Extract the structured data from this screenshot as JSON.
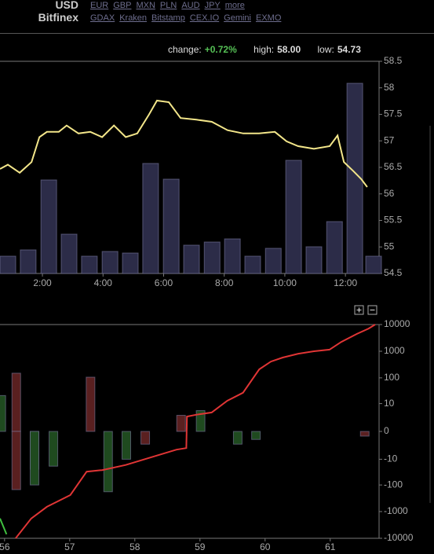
{
  "header": {
    "currency": "USD",
    "exchange": "Bitfinex",
    "currency_links": [
      "EUR",
      "GBP",
      "MXN",
      "PLN",
      "AUD",
      "JPY",
      "more"
    ],
    "exchange_links": [
      "GDAX",
      "Kraken",
      "Bitstamp",
      "CEX.IO",
      "Gemini",
      "EXMO"
    ]
  },
  "stats": {
    "change_label": "change:",
    "change": "+0.72%",
    "high_label": "high:",
    "high": "58.00",
    "low_label": "low:",
    "low": "54.73"
  },
  "chart_data": [
    {
      "type": "line",
      "xlim": [
        0.6,
        13.11
      ],
      "xticks": [
        {
          "value": 2,
          "label": "2:00"
        },
        {
          "value": 4,
          "label": "4:00"
        },
        {
          "value": 6,
          "label": "6:00"
        },
        {
          "value": 8,
          "label": "8:00"
        },
        {
          "value": 10,
          "label": "10:00"
        },
        {
          "value": 12,
          "label": "12:00"
        }
      ],
      "ylim": [
        54.5,
        58.5
      ],
      "yticks": [
        54.5,
        55,
        55.5,
        56,
        56.5,
        57,
        57.5,
        58,
        58.5
      ],
      "y2lim": [
        0,
        270
      ],
      "series": [
        {
          "type": "bar",
          "axis": "y2",
          "color": "#2c2c48",
          "x": [
            0.86,
            1.53,
            2.21,
            2.88,
            3.55,
            4.23,
            4.9,
            5.57,
            6.25,
            6.92,
            7.6,
            8.27,
            8.94,
            9.62,
            10.29,
            10.96,
            11.64,
            12.31,
            12.93
          ],
          "values": [
            22,
            30,
            119,
            50,
            22,
            28,
            26,
            140,
            120,
            36,
            40,
            44,
            22,
            32,
            144,
            34,
            66,
            242,
            22
          ]
        },
        {
          "type": "line",
          "color": "#f3e68a",
          "x": [
            0.6,
            0.86,
            1.25,
            1.64,
            1.9,
            2.15,
            2.54,
            2.8,
            3.19,
            3.58,
            3.97,
            4.36,
            4.75,
            5.13,
            5.52,
            5.78,
            6.17,
            6.56,
            7.08,
            7.59,
            8.11,
            8.63,
            9.15,
            9.67,
            10.06,
            10.44,
            10.96,
            11.48,
            11.74,
            11.95,
            12.26,
            12.52,
            12.72
          ],
          "values": [
            56.47,
            56.55,
            56.4,
            56.6,
            57.07,
            57.17,
            57.17,
            57.29,
            57.14,
            57.17,
            57.07,
            57.29,
            57.07,
            57.14,
            57.5,
            57.76,
            57.73,
            57.43,
            57.4,
            57.36,
            57.2,
            57.14,
            57.14,
            57.17,
            56.99,
            56.9,
            56.85,
            56.9,
            57.1,
            56.6,
            56.43,
            56.28,
            56.13
          ]
        }
      ]
    },
    {
      "type": "bar",
      "xlim": [
        55.93,
        61.75
      ],
      "xticks": [
        56,
        57,
        58,
        59,
        60,
        61
      ],
      "ylim": [
        -10000,
        10000
      ],
      "yticks": [
        10000,
        1000,
        100,
        10,
        0,
        -10,
        -100,
        -1000,
        -10000
      ],
      "yscale": "symlog",
      "series": [
        {
          "type": "bar",
          "color": "#5a2020",
          "x": [
            56.18,
            56.18,
            56.46,
            57.32,
            58.16,
            58.71,
            61.53
          ],
          "values": [
            150,
            -150,
            -25,
            106,
            -2,
            3,
            -0.5
          ]
        },
        {
          "type": "bar",
          "color": "#1f4a1f",
          "x": [
            55.95,
            56.46,
            56.75,
            57.59,
            57.87,
            59.01,
            59.58,
            59.86
          ],
          "values": [
            21,
            -100,
            -19,
            -180,
            -10,
            5,
            -2,
            -1
          ]
        },
        {
          "type": "line",
          "color": "#e03535",
          "x": [
            56.17,
            56.41,
            56.65,
            57.01,
            57.26,
            57.5,
            57.86,
            58.34,
            58.64,
            58.79,
            58.8,
            58.94,
            59.18,
            59.42,
            59.66,
            59.91,
            60.09,
            60.27,
            60.51,
            60.75,
            60.99,
            61.17,
            61.41,
            61.59,
            61.69
          ],
          "values": [
            -10000,
            -1820,
            -660,
            -240,
            -31,
            -27,
            -17,
            -7,
            -3.8,
            -3.2,
            2.6,
            3.2,
            4.1,
            13,
            27,
            210,
            410,
            580,
            810,
            1000,
            1150,
            2240,
            4470,
            7080,
            10000
          ]
        },
        {
          "type": "line",
          "color": "#40c040",
          "x": [
            55.93,
            56.03
          ],
          "values": [
            -1820,
            -7080
          ]
        }
      ]
    }
  ]
}
